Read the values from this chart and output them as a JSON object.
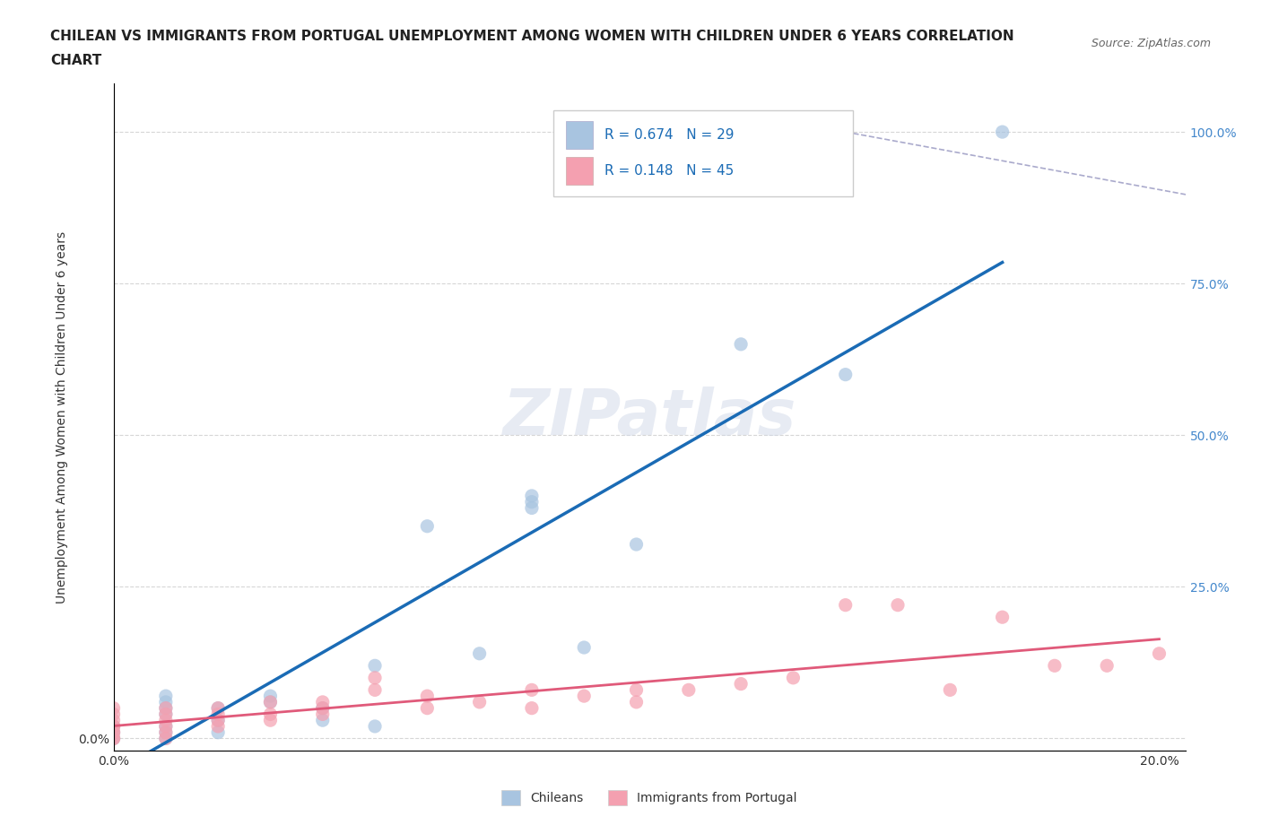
{
  "title_line1": "CHILEAN VS IMMIGRANTS FROM PORTUGAL UNEMPLOYMENT AMONG WOMEN WITH CHILDREN UNDER 6 YEARS CORRELATION",
  "title_line2": "CHART",
  "source": "Source: ZipAtlas.com",
  "ylabel": "Unemployment Among Women with Children Under 6 years",
  "xlabel": "",
  "r_chilean": 0.674,
  "n_chilean": 29,
  "r_portugal": 0.148,
  "n_portugal": 45,
  "chilean_color": "#a8c4e0",
  "portugal_color": "#f4a0b0",
  "chilean_line_color": "#1a6bb5",
  "portugal_line_color": "#e05a7a",
  "trend_line_dashed_color": "#aaaacc",
  "watermark_color": "#d0d8e8",
  "right_axis_color": "#4488cc",
  "background_color": "#ffffff",
  "xlim": [
    0.0,
    0.2
  ],
  "ylim": [
    0.0,
    1.05
  ],
  "x_ticks": [
    0.0,
    0.05,
    0.1,
    0.15,
    0.2
  ],
  "x_tick_labels": [
    "0.0%",
    "",
    "",
    "",
    "20.0%"
  ],
  "y_ticks": [
    0.0,
    0.25,
    0.5,
    0.75,
    1.0
  ],
  "y_tick_labels_left": [
    "0.0%",
    "",
    "",
    "",
    ""
  ],
  "y_tick_labels_right": [
    "",
    "25.0%",
    "50.0%",
    "75.0%",
    "100.0%"
  ],
  "legend_labels": [
    "Chileans",
    "Immigrants from Portugal"
  ],
  "chilean_scatter": {
    "x": [
      0.0,
      0.0,
      0.0,
      0.01,
      0.01,
      0.01,
      0.01,
      0.01,
      0.01,
      0.01,
      0.02,
      0.02,
      0.02,
      0.03,
      0.03,
      0.04,
      0.04,
      0.05,
      0.05,
      0.06,
      0.07,
      0.08,
      0.08,
      0.08,
      0.09,
      0.1,
      0.12,
      0.14,
      0.17
    ],
    "y": [
      0.0,
      0.01,
      0.02,
      0.0,
      0.01,
      0.02,
      0.04,
      0.05,
      0.06,
      0.07,
      0.01,
      0.03,
      0.05,
      0.06,
      0.07,
      0.03,
      0.05,
      0.02,
      0.12,
      0.35,
      0.14,
      0.38,
      0.39,
      0.4,
      0.15,
      0.32,
      0.65,
      0.6,
      1.0
    ]
  },
  "portugal_scatter": {
    "x": [
      0.0,
      0.0,
      0.0,
      0.0,
      0.0,
      0.0,
      0.0,
      0.0,
      0.0,
      0.01,
      0.01,
      0.01,
      0.01,
      0.01,
      0.01,
      0.02,
      0.02,
      0.02,
      0.02,
      0.03,
      0.03,
      0.03,
      0.04,
      0.04,
      0.04,
      0.05,
      0.05,
      0.06,
      0.06,
      0.07,
      0.08,
      0.08,
      0.09,
      0.1,
      0.1,
      0.11,
      0.12,
      0.13,
      0.14,
      0.15,
      0.16,
      0.17,
      0.18,
      0.19,
      0.2
    ],
    "y": [
      0.0,
      0.0,
      0.01,
      0.01,
      0.02,
      0.02,
      0.03,
      0.04,
      0.05,
      0.0,
      0.01,
      0.02,
      0.03,
      0.04,
      0.05,
      0.02,
      0.03,
      0.04,
      0.05,
      0.03,
      0.04,
      0.06,
      0.04,
      0.05,
      0.06,
      0.08,
      0.1,
      0.05,
      0.07,
      0.06,
      0.05,
      0.08,
      0.07,
      0.06,
      0.08,
      0.08,
      0.09,
      0.1,
      0.22,
      0.22,
      0.08,
      0.2,
      0.12,
      0.12,
      0.14
    ]
  }
}
